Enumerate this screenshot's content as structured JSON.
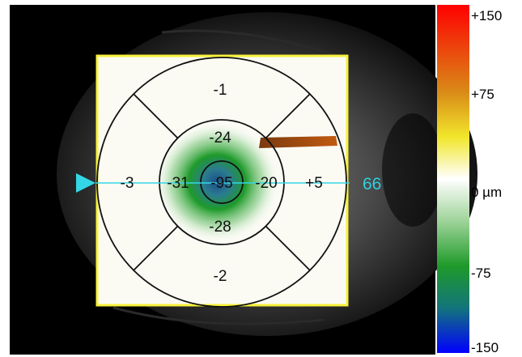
{
  "thickness_map": {
    "sectors": {
      "center": "-95",
      "inner_superior": "-24",
      "inner_inferior": "-28",
      "inner_temporal": "-31",
      "inner_nasal": "-20",
      "outer_superior": "-1",
      "outer_inferior": "-2",
      "outer_temporal": "-3",
      "outer_nasal": "+5"
    },
    "scan_line_value": "66"
  },
  "color_scale": {
    "labels": {
      "top": "+150",
      "upper": "+75",
      "middle": "0 µm",
      "lower": "-75",
      "bottom": "-150"
    },
    "colors": {
      "plus150": "#ff0000",
      "plus75": "#d98a18",
      "plus40": "#f1e62b",
      "zero": "#ffffff",
      "minus40": "#9fd49a",
      "minus75": "#1f9a2a",
      "minus110": "#13757a",
      "minus150": "#0000ff"
    }
  },
  "colors": {
    "scan_line": "#34d6e6",
    "grid_frame": "#f7f23a",
    "grid_lines": "#111111"
  }
}
